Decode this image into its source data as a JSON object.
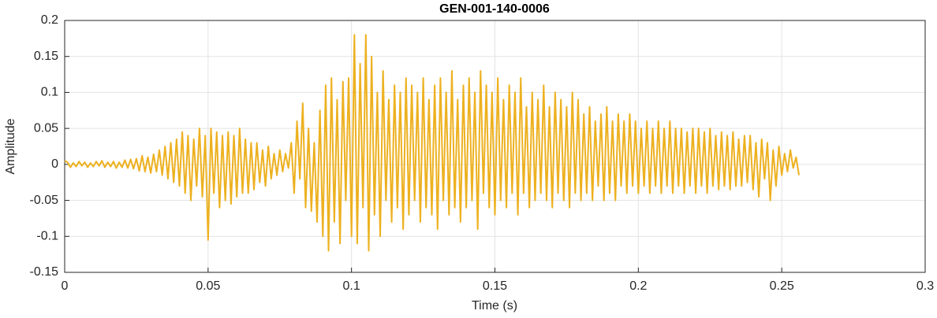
{
  "chart_data": {
    "type": "line",
    "title": "GEN-001-140-0006",
    "x_label": "Time (s)",
    "y_label": "Amplitude",
    "xlim": [
      0,
      0.3
    ],
    "xticks": [
      0,
      0.05,
      0.1,
      0.15,
      0.2,
      0.25,
      0.3
    ],
    "ylim": [
      -0.15,
      0.2
    ],
    "yticks": [
      -0.15,
      -0.1,
      -0.05,
      0,
      0.05,
      0.1,
      0.15,
      0.2
    ],
    "grid": true,
    "x": [
      0,
      0.001,
      0.002,
      0.003,
      0.004,
      0.005,
      0.006,
      0.007,
      0.008,
      0.009,
      0.01,
      0.011,
      0.012,
      0.013,
      0.014,
      0.015,
      0.016,
      0.017,
      0.018,
      0.019,
      0.02,
      0.021,
      0.022,
      0.023,
      0.024,
      0.025,
      0.026,
      0.027,
      0.028,
      0.029,
      0.03,
      0.031,
      0.032,
      0.033,
      0.034,
      0.035,
      0.036,
      0.037,
      0.038,
      0.039,
      0.04,
      0.041,
      0.042,
      0.043,
      0.044,
      0.045,
      0.046,
      0.047,
      0.048,
      0.049,
      0.05,
      0.051,
      0.052,
      0.053,
      0.054,
      0.055,
      0.056,
      0.057,
      0.058,
      0.059,
      0.06,
      0.061,
      0.062,
      0.063,
      0.064,
      0.065,
      0.066,
      0.067,
      0.068,
      0.069,
      0.07,
      0.071,
      0.072,
      0.073,
      0.074,
      0.075,
      0.076,
      0.077,
      0.078,
      0.079,
      0.08,
      0.081,
      0.082,
      0.083,
      0.084,
      0.085,
      0.086,
      0.087,
      0.088,
      0.089,
      0.09,
      0.091,
      0.092,
      0.093,
      0.094,
      0.095,
      0.096,
      0.097,
      0.098,
      0.099,
      0.1,
      0.101,
      0.102,
      0.103,
      0.104,
      0.105,
      0.106,
      0.107,
      0.108,
      0.109,
      0.11,
      0.111,
      0.112,
      0.113,
      0.114,
      0.115,
      0.116,
      0.117,
      0.118,
      0.119,
      0.12,
      0.121,
      0.122,
      0.123,
      0.124,
      0.125,
      0.126,
      0.127,
      0.128,
      0.129,
      0.13,
      0.131,
      0.132,
      0.133,
      0.134,
      0.135,
      0.136,
      0.137,
      0.138,
      0.139,
      0.14,
      0.141,
      0.142,
      0.143,
      0.144,
      0.145,
      0.146,
      0.147,
      0.148,
      0.149,
      0.15,
      0.151,
      0.152,
      0.153,
      0.154,
      0.155,
      0.156,
      0.157,
      0.158,
      0.159,
      0.16,
      0.161,
      0.162,
      0.163,
      0.164,
      0.165,
      0.166,
      0.167,
      0.168,
      0.169,
      0.17,
      0.171,
      0.172,
      0.173,
      0.174,
      0.175,
      0.176,
      0.177,
      0.178,
      0.179,
      0.18,
      0.181,
      0.182,
      0.183,
      0.184,
      0.185,
      0.186,
      0.187,
      0.188,
      0.189,
      0.19,
      0.191,
      0.192,
      0.193,
      0.194,
      0.195,
      0.196,
      0.197,
      0.198,
      0.199,
      0.2,
      0.201,
      0.202,
      0.203,
      0.204,
      0.205,
      0.206,
      0.207,
      0.208,
      0.209,
      0.21,
      0.211,
      0.212,
      0.213,
      0.214,
      0.215,
      0.216,
      0.217,
      0.218,
      0.219,
      0.22,
      0.221,
      0.222,
      0.223,
      0.224,
      0.225,
      0.226,
      0.227,
      0.228,
      0.229,
      0.23,
      0.231,
      0.232,
      0.233,
      0.234,
      0.235,
      0.236,
      0.237,
      0.238,
      0.239,
      0.24,
      0.241,
      0.242,
      0.243,
      0.244,
      0.245,
      0.246,
      0.247,
      0.248,
      0.249,
      0.25,
      0.251,
      0.252,
      0.253,
      0.254,
      0.255,
      0.256
    ],
    "series": [
      {
        "color": "#EDB120",
        "values": [
          0.005,
          0.003,
          -0.004,
          0.002,
          -0.003,
          0.004,
          -0.002,
          0.003,
          -0.004,
          0.002,
          -0.003,
          0.004,
          -0.002,
          0.005,
          -0.004,
          0.003,
          -0.003,
          0.004,
          -0.005,
          0.003,
          -0.004,
          0.006,
          -0.005,
          0.007,
          -0.006,
          0.008,
          -0.009,
          0.012,
          -0.01,
          0.01,
          -0.012,
          0.014,
          -0.01,
          0.02,
          -0.015,
          0.025,
          -0.02,
          0.03,
          -0.025,
          0.035,
          -0.03,
          0.045,
          -0.04,
          0.04,
          -0.05,
          0.035,
          -0.03,
          0.05,
          -0.045,
          0.04,
          -0.105,
          0.05,
          -0.04,
          0.045,
          -0.06,
          0.04,
          -0.05,
          0.045,
          -0.055,
          0.04,
          -0.045,
          0.05,
          -0.04,
          0.035,
          -0.04,
          0.03,
          -0.035,
          0.03,
          -0.025,
          0.02,
          -0.03,
          0.025,
          -0.02,
          0.015,
          -0.015,
          0.02,
          -0.01,
          0.015,
          -0.005,
          0.03,
          -0.04,
          0.06,
          -0.02,
          0.085,
          -0.06,
          0.05,
          -0.065,
          0.03,
          -0.08,
          0.075,
          -0.1,
          0.11,
          -0.12,
          0.12,
          -0.08,
          0.09,
          -0.11,
          0.115,
          -0.05,
          0.12,
          -0.1,
          0.18,
          -0.11,
          0.14,
          -0.06,
          0.18,
          -0.12,
          0.15,
          -0.07,
          0.1,
          -0.1,
          0.13,
          -0.05,
          0.09,
          -0.08,
          0.11,
          -0.06,
          0.1,
          -0.09,
          0.12,
          -0.07,
          0.11,
          -0.05,
          0.1,
          -0.08,
          0.12,
          -0.06,
          0.09,
          -0.07,
          0.11,
          -0.09,
          0.12,
          -0.05,
          0.1,
          -0.07,
          0.13,
          -0.06,
          0.09,
          -0.08,
          0.11,
          -0.06,
          0.12,
          -0.05,
          0.1,
          -0.09,
          0.13,
          -0.04,
          0.11,
          -0.06,
          0.1,
          -0.07,
          0.12,
          -0.05,
          0.09,
          -0.06,
          0.11,
          -0.04,
          0.1,
          -0.07,
          0.12,
          -0.04,
          0.08,
          -0.06,
          0.1,
          -0.05,
          0.09,
          -0.04,
          0.11,
          -0.05,
          0.08,
          -0.06,
          0.1,
          -0.04,
          0.09,
          -0.05,
          0.08,
          -0.06,
          0.1,
          -0.04,
          0.09,
          -0.05,
          0.07,
          -0.04,
          0.08,
          -0.05,
          0.06,
          -0.03,
          0.07,
          -0.05,
          0.08,
          -0.04,
          0.06,
          -0.05,
          0.07,
          -0.03,
          0.06,
          -0.04,
          0.07,
          -0.03,
          0.06,
          -0.04,
          0.05,
          -0.03,
          0.06,
          -0.04,
          0.05,
          -0.03,
          0.06,
          -0.04,
          0.05,
          -0.03,
          0.06,
          -0.04,
          0.05,
          -0.03,
          0.05,
          -0.04,
          0.045,
          -0.03,
          0.05,
          -0.04,
          0.05,
          -0.03,
          0.045,
          -0.04,
          0.05,
          -0.03,
          0.04,
          -0.035,
          0.045,
          -0.03,
          0.04,
          -0.035,
          0.045,
          -0.03,
          0.035,
          -0.03,
          0.04,
          -0.025,
          0.04,
          -0.035,
          0.03,
          -0.045,
          0.035,
          -0.02,
          0.03,
          -0.05,
          0.02,
          -0.03,
          0.025,
          -0.015,
          0.015,
          -0.01,
          0.02,
          -0.005,
          0.01,
          -0.015
        ]
      }
    ]
  }
}
